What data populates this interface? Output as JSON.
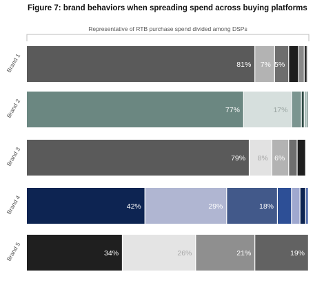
{
  "chart_data": {
    "type": "bar",
    "orientation": "horizontal",
    "stacked": true,
    "normalized": true,
    "title": "Figure 7: brand behaviors when spreading spend across buying platforms",
    "subtitle": "Representative of RTB purchase spend divided among DSPs",
    "categories": [
      "Brand 1",
      "Brand 2",
      "Brand 3",
      "Brand 4",
      "Brand 5"
    ],
    "grid": false,
    "legend": "none",
    "bars": [
      {
        "category": "Brand 1",
        "segments": [
          {
            "value": 81,
            "label": "81%",
            "color": "#5a5a5a",
            "text_color": "#ffffff"
          },
          {
            "value": 7,
            "label": "7%",
            "color": "#b3b3b3",
            "text_color": "#ffffff"
          },
          {
            "value": 5,
            "label": "5%",
            "color": "#6e6e6e",
            "text_color": "#ffffff"
          },
          {
            "value": 3.5,
            "label": "",
            "color": "#1e1e1e",
            "text_color": "#ffffff"
          },
          {
            "value": 2,
            "label": "",
            "color": "#8a8a8a",
            "text_color": "#ffffff"
          },
          {
            "value": 1,
            "label": "",
            "color": "#2a2a2a",
            "text_color": "#ffffff"
          },
          {
            "value": 0.5,
            "label": "",
            "color": "#c8c8c8",
            "text_color": "#ffffff"
          }
        ]
      },
      {
        "category": "Brand 2",
        "segments": [
          {
            "value": 77,
            "label": "77%",
            "color": "#6b8781",
            "text_color": "#ffffff"
          },
          {
            "value": 17,
            "label": "17%",
            "color": "#d6dfdd",
            "text_color": "#9aa5a2"
          },
          {
            "value": 3.5,
            "label": "",
            "color": "#7b9590",
            "text_color": "#ffffff"
          },
          {
            "value": 1,
            "label": "",
            "color": "#2f4a45",
            "text_color": "#ffffff"
          },
          {
            "value": 1,
            "label": "",
            "color": "#a8bcb8",
            "text_color": "#ffffff"
          },
          {
            "value": 0.5,
            "label": "",
            "color": "#3d5c56",
            "text_color": "#ffffff"
          }
        ]
      },
      {
        "category": "Brand 3",
        "segments": [
          {
            "value": 79,
            "label": "79%",
            "color": "#5a5a5a",
            "text_color": "#ffffff"
          },
          {
            "value": 8,
            "label": "8%",
            "color": "#e2e2e2",
            "text_color": "#a6a6a6"
          },
          {
            "value": 6,
            "label": "6%",
            "color": "#b3b3b3",
            "text_color": "#ffffff"
          },
          {
            "value": 3,
            "label": "",
            "color": "#6e6e6e",
            "text_color": "#ffffff"
          },
          {
            "value": 3,
            "label": "",
            "color": "#1e1e1e",
            "text_color": "#ffffff"
          },
          {
            "value": 1,
            "label": "",
            "color": "#ffffff",
            "text_color": "#ffffff"
          }
        ]
      },
      {
        "category": "Brand 4",
        "segments": [
          {
            "value": 42,
            "label": "42%",
            "color": "#0d2452",
            "text_color": "#ffffff"
          },
          {
            "value": 29,
            "label": "29%",
            "color": "#b0b6d2",
            "text_color": "#ffffff"
          },
          {
            "value": 18,
            "label": "18%",
            "color": "#42598a",
            "text_color": "#ffffff"
          },
          {
            "value": 5,
            "label": "",
            "color": "#2d4f96",
            "text_color": "#ffffff"
          },
          {
            "value": 3,
            "label": "",
            "color": "#9fa8cf",
            "text_color": "#ffffff"
          },
          {
            "value": 2,
            "label": "",
            "color": "#0d2452",
            "text_color": "#ffffff"
          },
          {
            "value": 1,
            "label": "",
            "color": "#5b74b0",
            "text_color": "#ffffff"
          }
        ]
      },
      {
        "category": "Brand 5",
        "segments": [
          {
            "value": 34,
            "label": "34%",
            "color": "#1f1f1f",
            "text_color": "#ffffff"
          },
          {
            "value": 26,
            "label": "26%",
            "color": "#e4e4e4",
            "text_color": "#a6a6a6"
          },
          {
            "value": 21,
            "label": "21%",
            "color": "#8f8f8f",
            "text_color": "#ffffff"
          },
          {
            "value": 19,
            "label": "19%",
            "color": "#626262",
            "text_color": "#ffffff"
          }
        ]
      }
    ]
  }
}
